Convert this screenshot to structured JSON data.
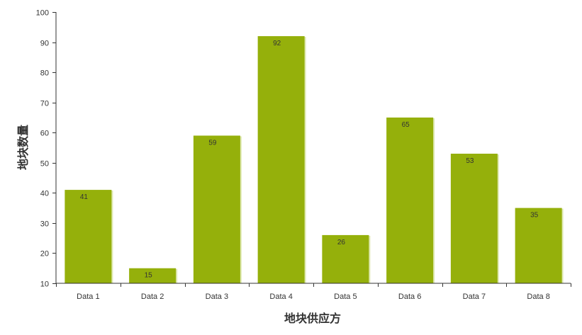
{
  "chart_data": {
    "type": "bar",
    "title": "",
    "xlabel": "地块供应方",
    "ylabel": "地块数量",
    "categories": [
      "Data 1",
      "Data 2",
      "Data 3",
      "Data 4",
      "Data 5",
      "Data 6",
      "Data 7",
      "Data 8"
    ],
    "values": [
      41,
      15,
      59,
      92,
      26,
      65,
      53,
      35
    ],
    "ylim": [
      10,
      100
    ],
    "yticks": [
      10,
      20,
      30,
      40,
      50,
      60,
      70,
      80,
      90,
      100
    ],
    "grid": false,
    "legend": "none",
    "bar_color": "#95b00b",
    "bar_shadow_color": "#dfe9b3",
    "axis_color": "#333333",
    "show_data_labels": true
  }
}
